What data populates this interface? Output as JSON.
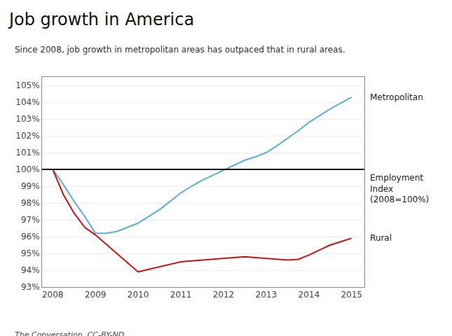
{
  "chart_data": {
    "type": "line",
    "title": "Job growth in America",
    "subtitle": "Since 2008, job growth in metropolitan areas has outpaced that in rural areas.",
    "source": "The Conversation, CC-BY-ND",
    "x": [
      2008,
      2008.25,
      2008.5,
      2008.75,
      2009,
      2009.25,
      2009.5,
      2009.75,
      2010,
      2010.25,
      2010.5,
      2010.75,
      2011,
      2011.25,
      2011.5,
      2011.75,
      2012,
      2012.25,
      2012.5,
      2012.75,
      2013,
      2013.25,
      2013.5,
      2013.75,
      2014,
      2014.25,
      2014.5,
      2014.75,
      2015
    ],
    "series": [
      {
        "name": "Metropolitan",
        "color": "#5bafd6",
        "values": [
          100,
          99.1,
          98.1,
          97.2,
          96.2,
          96.2,
          96.3,
          96.55,
          96.8,
          97.2,
          97.6,
          98.1,
          98.6,
          99.0,
          99.35,
          99.65,
          99.95,
          100.25,
          100.55,
          100.75,
          101.0,
          101.4,
          101.85,
          102.3,
          102.8,
          103.2,
          103.6,
          103.95,
          104.3
        ]
      },
      {
        "name": "Rural",
        "color": "#cc1111",
        "values": [
          100,
          98.5,
          97.4,
          96.55,
          96.1,
          95.55,
          95.0,
          94.45,
          93.9,
          94.05,
          94.2,
          94.35,
          94.5,
          94.55,
          94.6,
          94.65,
          94.7,
          94.75,
          94.8,
          94.75,
          94.7,
          94.65,
          94.6,
          94.65,
          94.9,
          95.2,
          95.5,
          95.7,
          95.9
        ]
      }
    ],
    "reference": {
      "value": 100,
      "color": "#111111",
      "label": "Employment\nIndex\n(2008=100%)"
    },
    "xlim": [
      2007.75,
      2015.3
    ],
    "xticks": [
      2008,
      2009,
      2010,
      2011,
      2012,
      2013,
      2014,
      2015
    ],
    "ylim": [
      93,
      105.5
    ],
    "yticks": [
      {
        "value": 93,
        "label": "93%"
      },
      {
        "value": 94,
        "label": "94%"
      },
      {
        "value": 95,
        "label": "95%"
      },
      {
        "value": 96,
        "label": "96%"
      },
      {
        "value": 97,
        "label": "97%"
      },
      {
        "value": 98,
        "label": "98%"
      },
      {
        "value": 99,
        "label": "99%"
      },
      {
        "value": 100,
        "label": "100%"
      },
      {
        "value": 101,
        "label": "101%"
      },
      {
        "value": 102,
        "label": "102%"
      },
      {
        "value": 103,
        "label": "103%"
      },
      {
        "value": 104,
        "label": "104%"
      },
      {
        "value": 105,
        "label": "105%"
      }
    ],
    "grid": "y"
  }
}
